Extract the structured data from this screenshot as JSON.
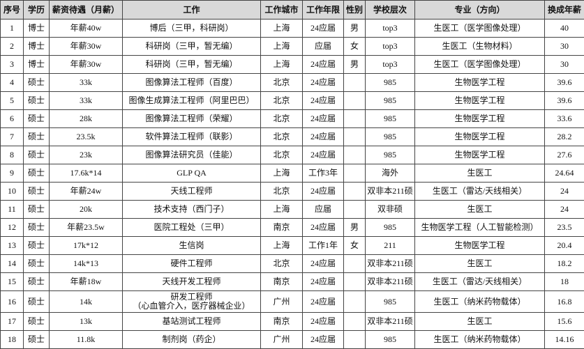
{
  "table": {
    "headers": [
      "序号",
      "学历",
      "薪资待遇（月薪）",
      "工作",
      "工作城市",
      "工作年限",
      "性别",
      "学校层次",
      "专业（方向）",
      "换成年薪"
    ],
    "rows": [
      [
        "1",
        "博士",
        "年薪40w",
        "博后（三甲，科研岗）",
        "上海",
        "24应届",
        "男",
        "top3",
        "生医工（医学图像处理）",
        "40"
      ],
      [
        "2",
        "博士",
        "年薪30w",
        "科研岗（三甲，暂无编）",
        "上海",
        "应届",
        "女",
        "top3",
        "生医工（生物材料）",
        "30"
      ],
      [
        "3",
        "博士",
        "年薪30w",
        "科研岗（三甲，暂无编）",
        "上海",
        "24应届",
        "男",
        "top3",
        "生医工（医学图像处理）",
        "30"
      ],
      [
        "4",
        "硕士",
        "33k",
        "图像算法工程师（百度）",
        "北京",
        "24应届",
        null,
        "985",
        "生物医学工程",
        "39.6"
      ],
      [
        "5",
        "硕士",
        "33k",
        "图像生成算法工程师（阿里巴巴）",
        "北京",
        "24应届",
        null,
        "985",
        "生物医学工程",
        "39.6"
      ],
      [
        "6",
        "硕士",
        "28k",
        "图像算法工程师（荣耀）",
        "北京",
        "24应届",
        null,
        "985",
        "生物医学工程",
        "33.6"
      ],
      [
        "7",
        "硕士",
        "23.5k",
        "软件算法工程师（联影）",
        "北京",
        "24应届",
        null,
        "985",
        "生物医学工程",
        "28.2"
      ],
      [
        "8",
        "硕士",
        "23k",
        "图像算法研究员（佳能）",
        "北京",
        "24应届",
        null,
        "985",
        "生物医学工程",
        "27.6"
      ],
      [
        "9",
        "硕士",
        "17.6k*14",
        "GLP QA",
        "上海",
        "工作3年",
        null,
        "海外",
        "生医工",
        "24.64"
      ],
      [
        "10",
        "硕士",
        "年薪24w",
        "天线工程师",
        "北京",
        "24应届",
        null,
        "双非本211硕",
        "生医工（雷达/天线相关）",
        "24"
      ],
      [
        "11",
        "硕士",
        "20k",
        "技术支持（西门子）",
        "上海",
        "应届",
        null,
        "双非硕",
        "生医工",
        "24"
      ],
      [
        "12",
        "硕士",
        "年薪23.5w",
        "医院工程处（三甲）",
        "南京",
        "24应届",
        "男",
        "985",
        "生物医学工程（人工智能检测）",
        "23.5"
      ],
      [
        "13",
        "硕士",
        "17k*12",
        "生信岗",
        "上海",
        "工作1年",
        "女",
        "211",
        "生物医学工程",
        "20.4"
      ],
      [
        "14",
        "硕士",
        "14k*13",
        "硬件工程师",
        "北京",
        "24应届",
        null,
        "双非本211硕",
        "生医工",
        "18.2"
      ],
      [
        "15",
        "硕士",
        "年薪18w",
        "天线开发工程师",
        "南京",
        "24应届",
        null,
        "双非本211硕",
        "生医工（雷达/天线相关）",
        "18"
      ],
      [
        "16",
        "硕士",
        "14k",
        "研发工程师\n（心血管介入，医疗器械企业）",
        "广州",
        "24应届",
        null,
        "985",
        "生医工（纳米药物载体）",
        "16.8"
      ],
      [
        "17",
        "硕士",
        "13k",
        "基站测试工程师",
        "南京",
        "24应届",
        null,
        "双非本211硕",
        "生医工",
        "15.6"
      ],
      [
        "18",
        "硕士",
        "11.8k",
        "制剂岗（药企）",
        "广州",
        "24应届",
        null,
        "985",
        "生医工（纳米药物载体）",
        "14.16"
      ]
    ]
  }
}
